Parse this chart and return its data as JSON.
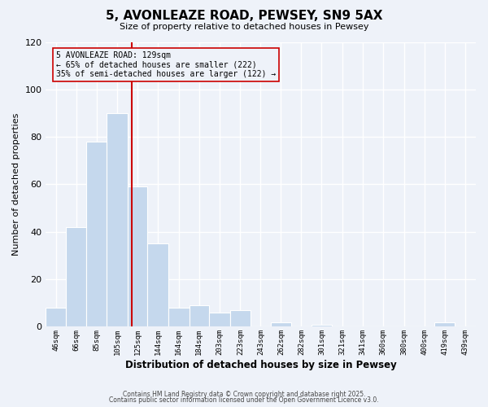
{
  "title": "5, AVONLEAZE ROAD, PEWSEY, SN9 5AX",
  "subtitle": "Size of property relative to detached houses in Pewsey",
  "xlabel": "Distribution of detached houses by size in Pewsey",
  "ylabel": "Number of detached properties",
  "bar_color": "#c5d8ed",
  "bar_edgecolor": "#ffffff",
  "vline_x": 129,
  "vline_color": "#cc0000",
  "categories": [
    "46sqm",
    "66sqm",
    "85sqm",
    "105sqm",
    "125sqm",
    "144sqm",
    "164sqm",
    "184sqm",
    "203sqm",
    "223sqm",
    "243sqm",
    "262sqm",
    "282sqm",
    "301sqm",
    "321sqm",
    "341sqm",
    "360sqm",
    "380sqm",
    "400sqm",
    "419sqm",
    "439sqm"
  ],
  "bin_left": [
    46,
    66,
    85,
    105,
    125,
    144,
    164,
    184,
    203,
    223,
    243,
    262,
    282,
    301,
    321,
    341,
    360,
    380,
    400,
    419,
    439
  ],
  "bin_right": [
    66,
    85,
    105,
    125,
    144,
    164,
    184,
    203,
    223,
    243,
    262,
    282,
    301,
    321,
    341,
    360,
    380,
    400,
    419,
    439,
    459
  ],
  "values": [
    8,
    42,
    78,
    90,
    59,
    35,
    8,
    9,
    6,
    7,
    0,
    2,
    0,
    1,
    0,
    0,
    0,
    0,
    0,
    2,
    0
  ],
  "ylim": [
    0,
    120
  ],
  "xlim": [
    46,
    459
  ],
  "yticks": [
    0,
    20,
    40,
    60,
    80,
    100,
    120
  ],
  "annotation_line1": "5 AVONLEAZE ROAD: 129sqm",
  "annotation_line2": "← 65% of detached houses are smaller (222)",
  "annotation_line3": "35% of semi-detached houses are larger (122) →",
  "background_color": "#eef2f9",
  "grid_color": "#d8dde8",
  "footer1": "Contains HM Land Registry data © Crown copyright and database right 2025.",
  "footer2": "Contains public sector information licensed under the Open Government Licence v3.0."
}
